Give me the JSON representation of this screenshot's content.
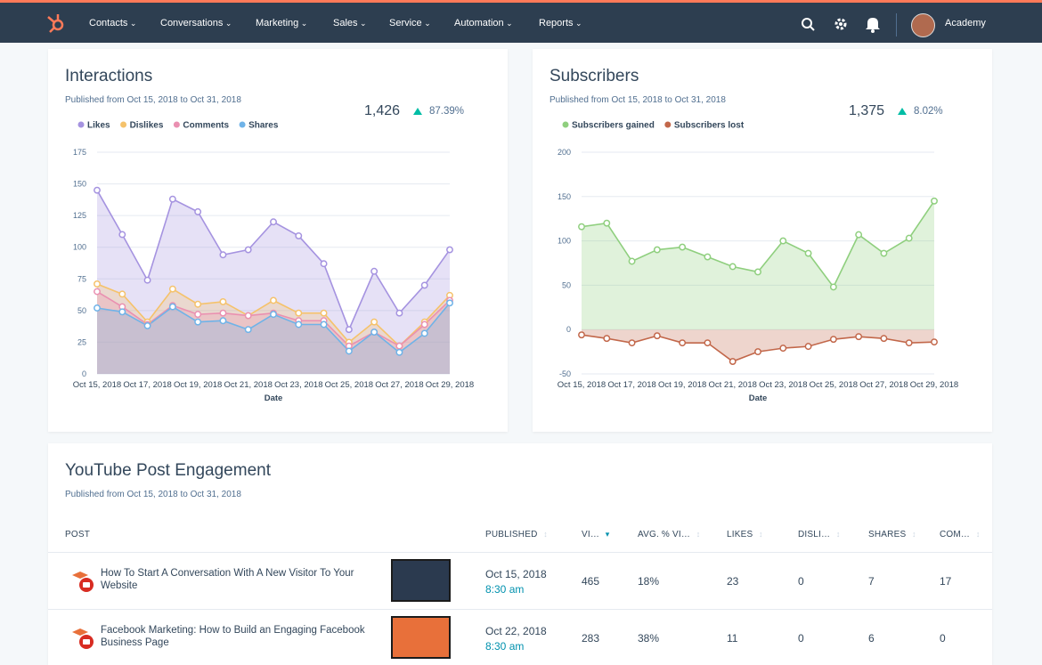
{
  "nav": {
    "items": [
      "Contacts",
      "Conversations",
      "Marketing",
      "Sales",
      "Service",
      "Automation",
      "Reports"
    ],
    "user": "Academy"
  },
  "chart_data": [
    {
      "type": "area",
      "title": "Interactions",
      "subtitle": "Published from Oct 15, 2018 to Oct 31, 2018",
      "summary": {
        "total": "1,426",
        "change": "87.39%"
      },
      "legend": "top-left",
      "grid": true,
      "x_label": "Date",
      "categories": [
        "Oct 15, 2018",
        null,
        "Oct 17, 2018",
        null,
        "Oct 19, 2018",
        null,
        "Oct 21, 2018",
        null,
        "Oct 23, 2018",
        null,
        "Oct 25, 2018",
        null,
        "Oct 27, 2018",
        null,
        "Oct 29, 2018"
      ],
      "ylim": [
        0,
        175
      ],
      "yticks": [
        0,
        25,
        50,
        75,
        100,
        125,
        150,
        175
      ],
      "series": [
        {
          "name": "Likes",
          "color": "#a593e0",
          "values": [
            145,
            110,
            74,
            138,
            128,
            94,
            98,
            120,
            109,
            87,
            35,
            81,
            48,
            70,
            98
          ]
        },
        {
          "name": "Dislikes",
          "color": "#f5c26b",
          "values": [
            71,
            63,
            41,
            67,
            55,
            57,
            46,
            58,
            48,
            48,
            25,
            41,
            22,
            41,
            62
          ]
        },
        {
          "name": "Comments",
          "color": "#ea90b1",
          "values": [
            65,
            53,
            39,
            54,
            47,
            48,
            46,
            48,
            42,
            42,
            22,
            33,
            22,
            39,
            58
          ]
        },
        {
          "name": "Shares",
          "color": "#6fb3e8",
          "values": [
            52,
            49,
            38,
            53,
            41,
            42,
            35,
            47,
            39,
            39,
            18,
            33,
            17,
            32,
            56
          ]
        }
      ]
    },
    {
      "type": "area",
      "title": "Subscribers",
      "subtitle": "Published from Oct 15, 2018 to Oct 31, 2018",
      "summary": {
        "total": "1,375",
        "change": "8.02%"
      },
      "legend": "top-left",
      "grid": true,
      "x_label": "Date",
      "categories": [
        "Oct 15, 2018",
        null,
        "Oct 17, 2018",
        null,
        "Oct 19, 2018",
        null,
        "Oct 21, 2018",
        null,
        "Oct 23, 2018",
        null,
        "Oct 25, 2018",
        null,
        "Oct 27, 2018",
        null,
        "Oct 29, 2018"
      ],
      "ylim": [
        -50,
        200
      ],
      "yticks": [
        -50,
        0,
        50,
        100,
        150,
        200
      ],
      "series": [
        {
          "name": "Subscribers gained",
          "color": "#8fcf7e",
          "values": [
            116,
            120,
            77,
            90,
            93,
            82,
            71,
            65,
            100,
            86,
            48,
            107,
            86,
            103,
            145
          ]
        },
        {
          "name": "Subscribers lost",
          "color": "#c2674a",
          "values": [
            -6,
            -10,
            -15,
            -7,
            -15,
            -15,
            -36,
            -25,
            -21,
            -19,
            -11,
            -8,
            -10,
            -15,
            -14
          ]
        }
      ]
    }
  ],
  "table": {
    "title": "YouTube Post Engagement",
    "subtitle": "Published from Oct 15, 2018 to Oct 31, 2018",
    "columns": [
      "POST",
      "PUBLISHED",
      "VI…",
      "AVG. % VI…",
      "LIKES",
      "DISLI…",
      "SHARES",
      "COM…"
    ],
    "rows": [
      [
        "How To Start A Conversation With A New Visitor To Your Website",
        "Oct 15, 2018",
        "8:30 am",
        465,
        "18%",
        23,
        0,
        7,
        17
      ],
      [
        "Facebook Marketing: How to Build an Engaging Facebook Business Page",
        "Oct 22, 2018",
        "8:30 am",
        283,
        "38%",
        11,
        0,
        6,
        0
      ]
    ]
  }
}
